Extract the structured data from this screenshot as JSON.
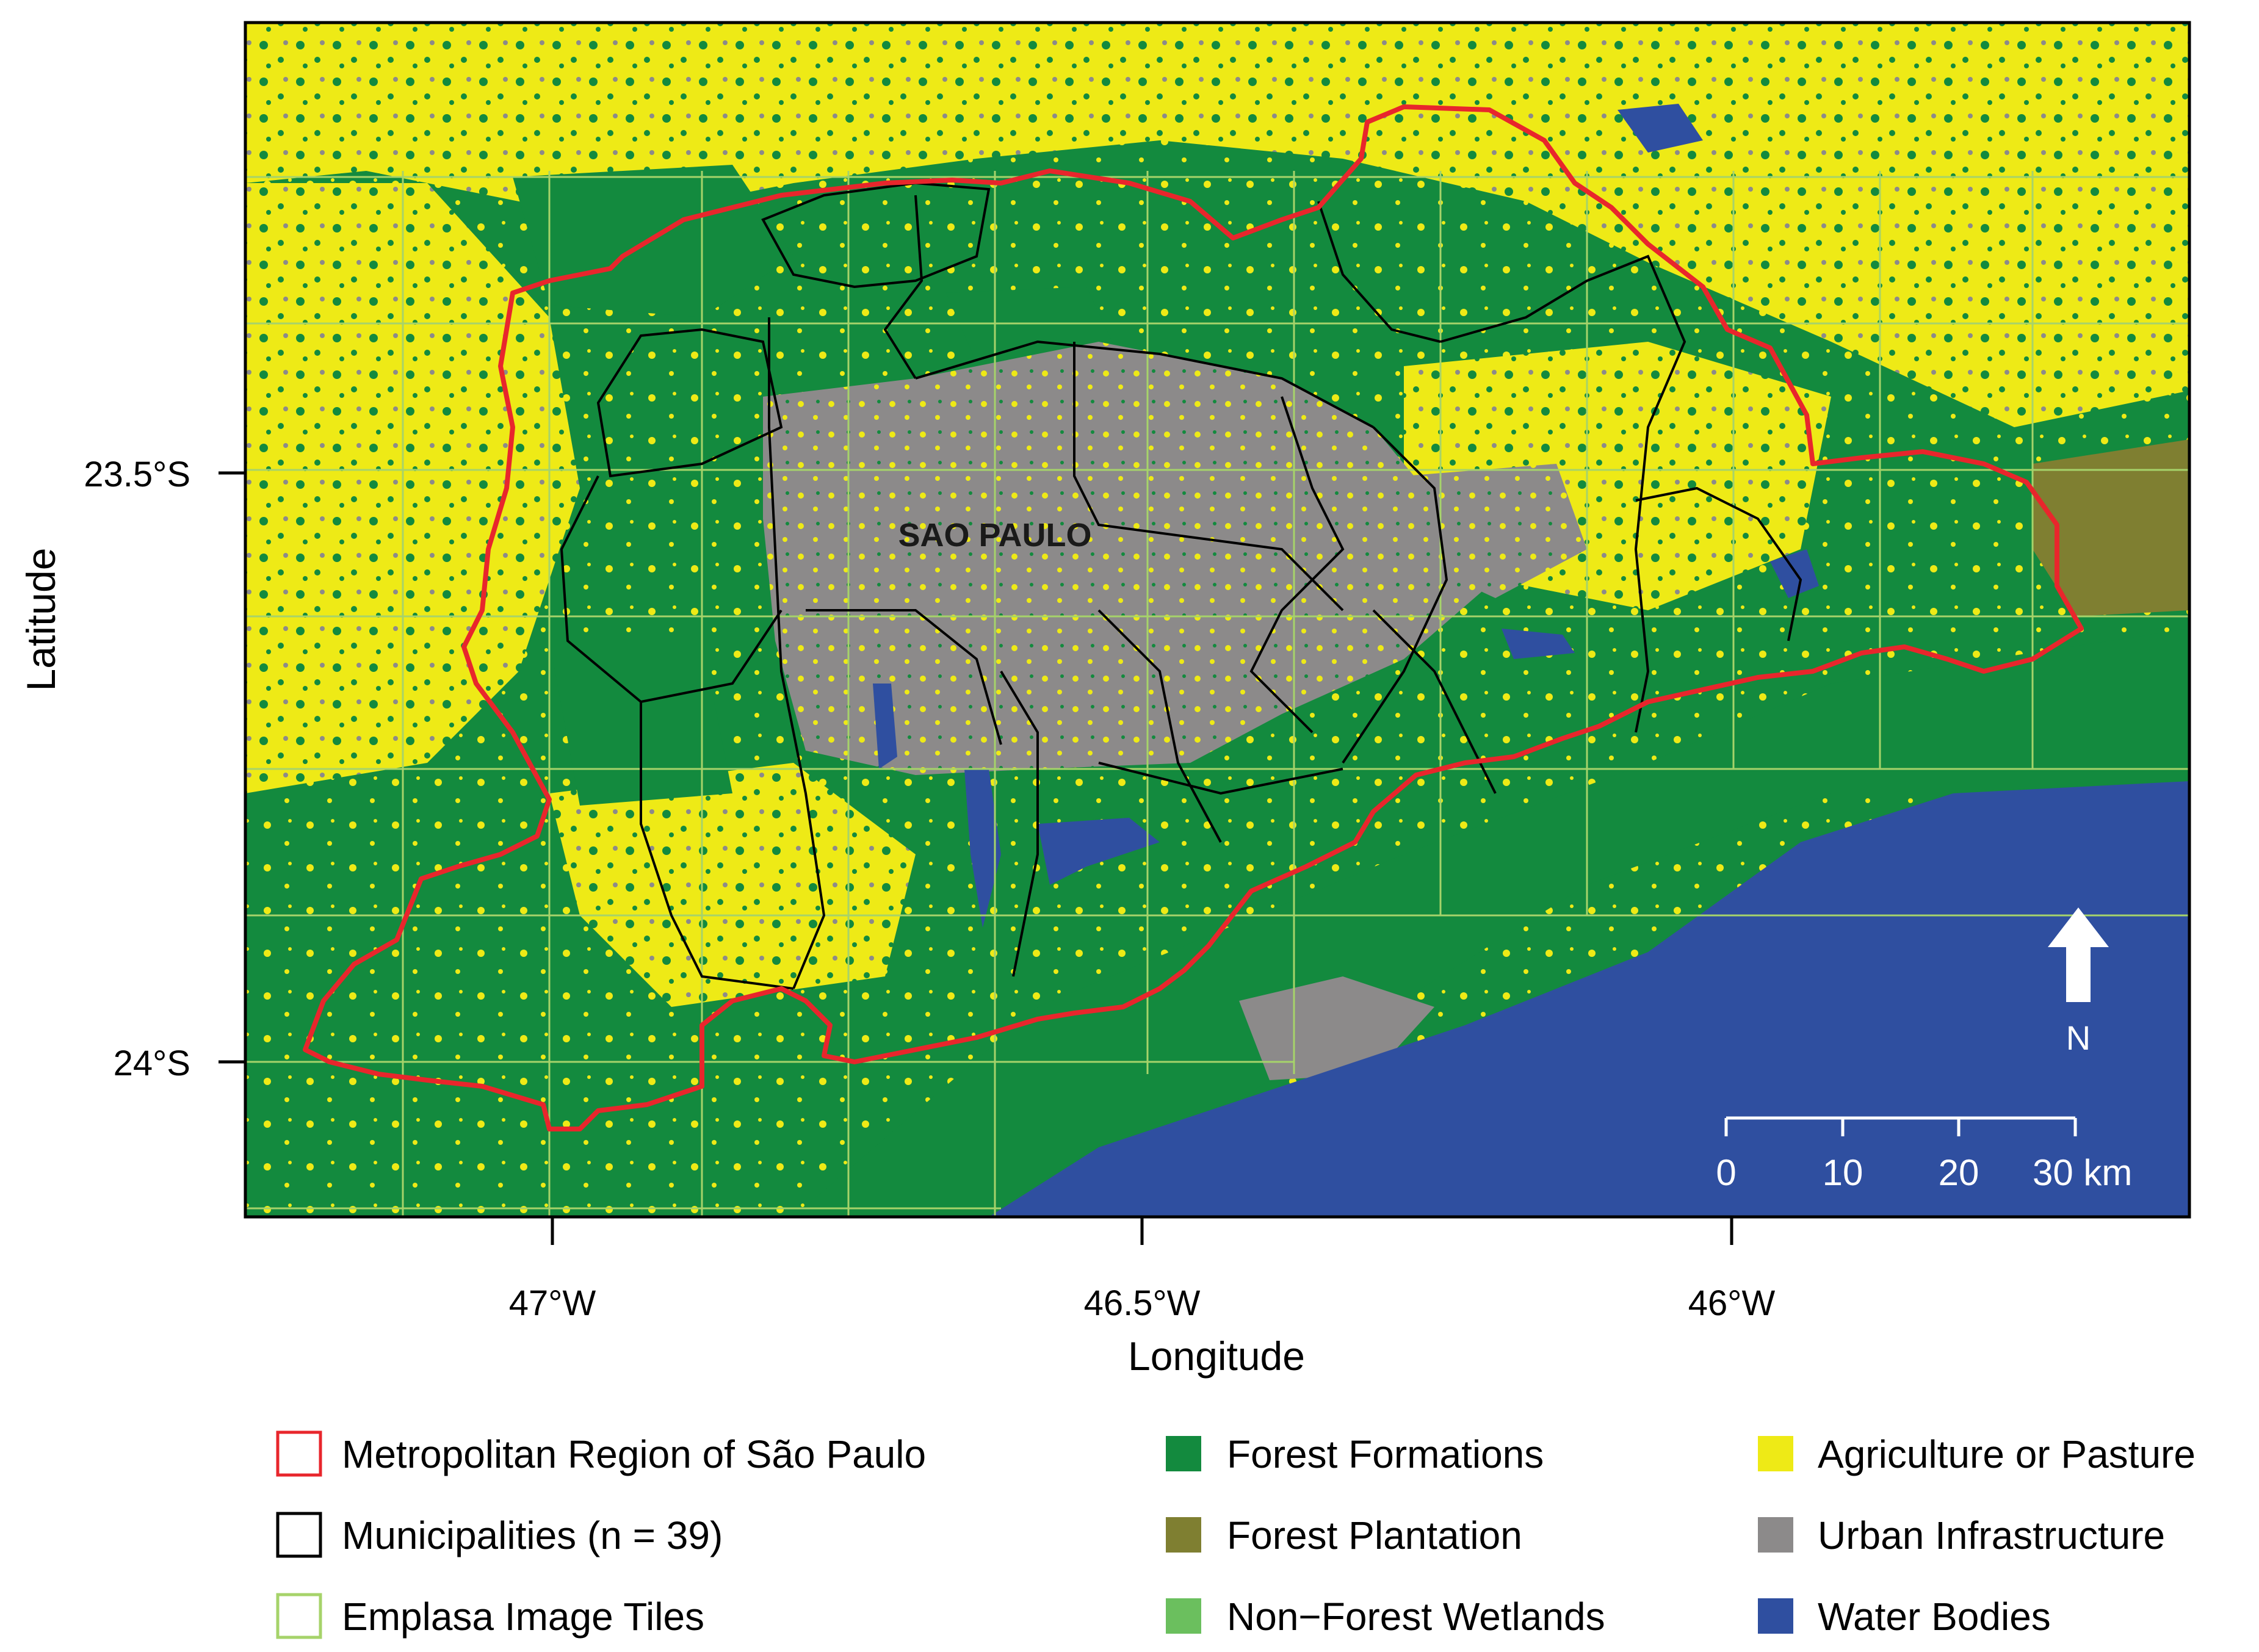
{
  "map": {
    "city_label": "SAO PAULO",
    "north_label": "N",
    "scale_bar": {
      "ticks": [
        "0",
        "10",
        "20",
        "30 km"
      ]
    }
  },
  "axes": {
    "xlabel": "Longitude",
    "ylabel": "Latitude",
    "x_ticks": [
      "47°W",
      "46.5°W",
      "46°W"
    ],
    "y_ticks": [
      "23.5°S",
      "24°S"
    ]
  },
  "colors": {
    "forest": "#138a3e",
    "plantation": "#7f7f31",
    "wetlands": "#6bbf5e",
    "agriculture": "#eeea16",
    "urban": "#8c8a8a",
    "water": "#2f4fa0",
    "metro_boundary": "#e8262c",
    "municipalities": "#000000",
    "tiles": "#a6d36a"
  },
  "legend": {
    "items": [
      {
        "label": "Metropolitan Region of São Paulo",
        "kind": "outline",
        "color": "#e8262c"
      },
      {
        "label": "Municipalities (n = 39)",
        "kind": "outline",
        "color": "#000000"
      },
      {
        "label": "Emplasa Image Tiles",
        "kind": "outline",
        "color": "#a6d36a"
      },
      {
        "label": "Forest Formations",
        "kind": "fill",
        "color": "#138a3e"
      },
      {
        "label": "Forest Plantation",
        "kind": "fill",
        "color": "#7f7f31"
      },
      {
        "label": "Non−Forest Wetlands",
        "kind": "fill",
        "color": "#6bbf5e"
      },
      {
        "label": "Agriculture or Pasture",
        "kind": "fill",
        "color": "#eeea16"
      },
      {
        "label": "Urban Infrastructure",
        "kind": "fill",
        "color": "#8c8a8a"
      },
      {
        "label": "Water Bodies",
        "kind": "fill",
        "color": "#2f4fa0"
      }
    ]
  }
}
